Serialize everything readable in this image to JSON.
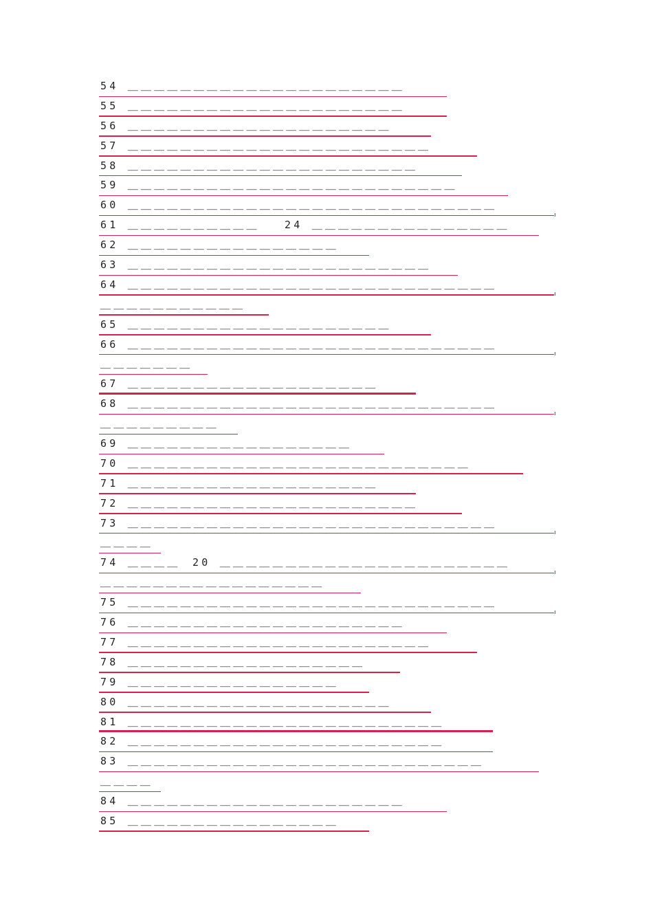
{
  "document": {
    "lines": [
      {
        "text": "54 ＿＿＿＿＿＿＿＿＿＿＿＿＿＿＿＿＿＿＿＿＿"
      },
      {
        "text": "55 ＿＿＿＿＿＿＿＿＿＿＿＿＿＿＿＿＿＿＿＿＿"
      },
      {
        "text": "56 ＿＿＿＿＿＿＿＿＿＿＿＿＿＿＿＿＿＿＿＿"
      },
      {
        "text": "57 ＿＿＿＿＿＿＿＿＿＿＿＿＿＿＿＿＿＿＿＿＿＿＿"
      },
      {
        "text": "58 ＿＿＿＿＿＿＿＿＿＿＿＿＿＿＿＿＿＿＿＿＿＿"
      },
      {
        "text": "59 ＿＿＿＿＿＿＿＿＿＿＿＿＿＿＿＿＿＿＿＿＿＿＿＿＿"
      },
      {
        "text": "60 ＿＿＿＿＿＿＿＿＿＿＿＿＿＿＿＿＿＿＿＿＿＿＿＿＿＿＿＿"
      },
      {
        "text": "61 ＿＿＿＿＿＿＿＿＿＿",
        "text2": "24 ＿＿＿＿＿＿＿＿＿＿＿＿＿＿＿"
      },
      {
        "text": "62 ＿＿＿＿＿＿＿＿＿＿＿＿＿＿＿＿"
      },
      {
        "text": "63 ＿＿＿＿＿＿＿＿＿＿＿＿＿＿＿＿＿＿＿＿＿＿＿"
      },
      {
        "text": "64 ＿＿＿＿＿＿＿＿＿＿＿＿＿＿＿＿＿＿＿＿＿＿＿＿＿＿＿＿"
      },
      {
        "text": "＿＿＿＿＿＿＿＿＿＿＿"
      },
      {
        "text": "65 ＿＿＿＿＿＿＿＿＿＿＿＿＿＿＿＿＿＿＿＿"
      },
      {
        "text": "66 ＿＿＿＿＿＿＿＿＿＿＿＿＿＿＿＿＿＿＿＿＿＿＿＿＿＿＿＿"
      },
      {
        "text": "＿＿＿＿＿＿＿"
      },
      {
        "text": "67 ＿＿＿＿＿＿＿＿＿＿＿＿＿＿＿＿＿＿＿"
      },
      {
        "text": "68 ＿＿＿＿＿＿＿＿＿＿＿＿＿＿＿＿＿＿＿＿＿＿＿＿＿＿＿＿"
      },
      {
        "text": "＿＿＿＿＿＿＿＿＿"
      },
      {
        "text": "69 ＿＿＿＿＿＿＿＿＿＿＿＿＿＿＿＿＿"
      },
      {
        "text": "70 ＿＿＿＿＿＿＿＿＿＿＿＿＿＿＿＿＿＿＿＿＿＿＿＿＿＿"
      },
      {
        "text": "71 ＿＿＿＿＿＿＿＿＿＿＿＿＿＿＿＿＿＿＿"
      },
      {
        "text": "72 ＿＿＿＿＿＿＿＿＿＿＿＿＿＿＿＿＿＿＿＿＿＿"
      },
      {
        "text": "73 ＿＿＿＿＿＿＿＿＿＿＿＿＿＿＿＿＿＿＿＿＿＿＿＿＿＿＿＿"
      },
      {
        "text": "＿＿＿＿"
      },
      {
        "text": "74 ＿＿＿＿",
        "text2": "20 ＿＿＿＿＿＿＿＿＿＿＿＿＿＿＿＿＿＿＿＿＿＿"
      },
      {
        "text": "＿＿＿＿＿＿＿＿＿＿＿＿＿＿＿＿＿"
      },
      {
        "text": "75 ＿＿＿＿＿＿＿＿＿＿＿＿＿＿＿＿＿＿＿＿＿＿＿＿＿＿＿＿"
      },
      {
        "text": "76 ＿＿＿＿＿＿＿＿＿＿＿＿＿＿＿＿＿＿＿＿＿"
      },
      {
        "text": "77 ＿＿＿＿＿＿＿＿＿＿＿＿＿＿＿＿＿＿＿＿＿＿＿"
      },
      {
        "text": "78 ＿＿＿＿＿＿＿＿＿＿＿＿＿＿＿＿＿＿"
      },
      {
        "text": "79 ＿＿＿＿＿＿＿＿＿＿＿＿＿＿＿＿"
      },
      {
        "text": "80 ＿＿＿＿＿＿＿＿＿＿＿＿＿＿＿＿＿＿＿＿"
      },
      {
        "text": "81 ＿＿＿＿＿＿＿＿＿＿＿＿＿＿＿＿＿＿＿＿＿＿＿＿"
      },
      {
        "text": "82 ＿＿＿＿＿＿＿＿＿＿＿＿＿＿＿＿＿＿＿＿＿＿＿＿"
      },
      {
        "text": "83 ＿＿＿＿＿＿＿＿＿＿＿＿＿＿＿＿＿＿＿＿＿＿＿＿＿＿＿"
      },
      {
        "text": "＿＿＿＿"
      },
      {
        "text": "84 ＿＿＿＿＿＿＿＿＿＿＿＿＿＿＿＿＿＿＿＿＿"
      },
      {
        "text": "85 ＿＿＿＿＿＿＿＿＿＿＿＿＿＿＿＿"
      }
    ]
  },
  "colors": {
    "rule": "#d6214a",
    "text": "#222222"
  }
}
